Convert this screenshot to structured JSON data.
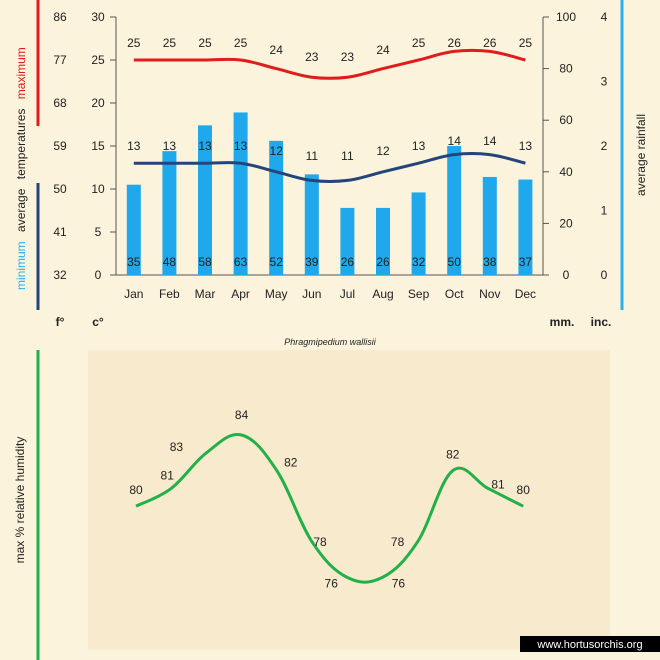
{
  "chart_data": [
    {
      "type": "bar+line",
      "title": "Phragmipedium wallisii",
      "categories": [
        "Jan",
        "Feb",
        "Mar",
        "Apr",
        "May",
        "Jun",
        "Jul",
        "Aug",
        "Sep",
        "Oct",
        "Nov",
        "Dec"
      ],
      "rainfall_mm": [
        35,
        48,
        58,
        63,
        52,
        39,
        26,
        26,
        32,
        50,
        38,
        37
      ],
      "max_temp_c": [
        25,
        25,
        25,
        25,
        24,
        23,
        23,
        24,
        25,
        26,
        26,
        25
      ],
      "min_temp_c": [
        13,
        13,
        13,
        13,
        12,
        11,
        11,
        12,
        13,
        14,
        14,
        13
      ],
      "celsius_axis": {
        "ticks": [
          "0",
          "5",
          "10",
          "15",
          "20",
          "25",
          "30"
        ],
        "ylim": [
          0,
          30
        ],
        "unit": "c°"
      },
      "fahrenheit_axis": {
        "ticks": [
          "32",
          "41",
          "50",
          "59",
          "68",
          "77",
          "86"
        ],
        "unit": "f°"
      },
      "mm_axis": {
        "ticks": [
          "0",
          "20",
          "40",
          "60",
          "80",
          "100"
        ],
        "ylim": [
          0,
          100
        ],
        "unit": "mm."
      },
      "inch_axis": {
        "ticks": [
          "0",
          "1",
          "2",
          "3",
          "4"
        ],
        "unit": "inc."
      },
      "left_label": {
        "minimum": "minimum",
        "average": "average",
        "temperatures": "temperatures",
        "maximum": "maximum"
      },
      "right_label": "average rainfall",
      "colors": {
        "max": "#e01c1c",
        "min": "#23457a",
        "bars": "#1fa8ec",
        "rain_axis": "#2bb0e8",
        "grid": "#555555"
      }
    },
    {
      "type": "line",
      "ylabel": "max % relative humidity",
      "values": [
        80,
        81,
        83,
        84,
        82,
        78,
        76,
        76,
        78,
        82,
        81,
        80
      ],
      "color": "#22b04a"
    }
  ],
  "watermark": "www.hortusorchis.org"
}
